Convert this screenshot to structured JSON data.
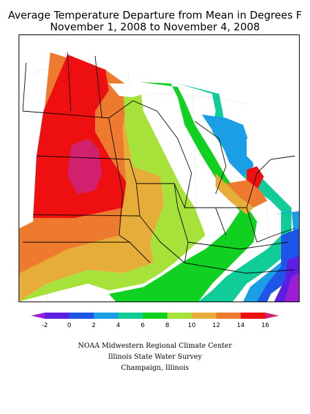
{
  "title": {
    "line1": "Average Temperature Departure from Mean in Degrees F",
    "line2": "November 1, 2008 to November 4, 2008"
  },
  "legend": {
    "units": "Degrees F",
    "min_label": "-2",
    "labels": [
      "-2",
      "0",
      "2",
      "4",
      "6",
      "8",
      "10",
      "12",
      "14",
      "16"
    ],
    "bins": [
      {
        "lo": -4,
        "hi": -2,
        "color": "#9a1fd0"
      },
      {
        "lo": -2,
        "hi": 0,
        "color": "#5a1fe0"
      },
      {
        "lo": 0,
        "hi": 2,
        "color": "#1f55e6"
      },
      {
        "lo": 2,
        "hi": 4,
        "color": "#1a9ee6"
      },
      {
        "lo": 4,
        "hi": 6,
        "color": "#10cc99"
      },
      {
        "lo": 6,
        "hi": 8,
        "color": "#10d020"
      },
      {
        "lo": 8,
        "hi": 10,
        "color": "#a6e23a"
      },
      {
        "lo": 10,
        "hi": 12,
        "color": "#e6ad38"
      },
      {
        "lo": 12,
        "hi": 14,
        "color": "#ee7a30"
      },
      {
        "lo": 14,
        "hi": 16,
        "color": "#ee1010"
      },
      {
        "lo": 16,
        "hi": 18,
        "color": "#d0206e"
      }
    ]
  },
  "credits": [
    "NOAA Midwestern Regional Climate Center",
    "Illinois State Water Survey",
    "Champaign, Illinois"
  ]
}
